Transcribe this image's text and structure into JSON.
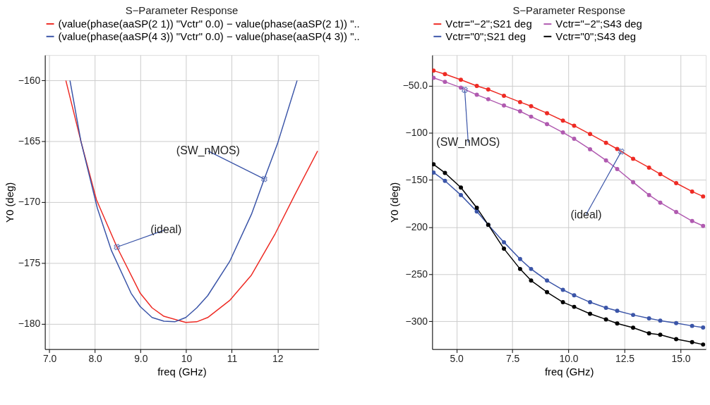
{
  "chart_data": [
    {
      "type": "line",
      "title": "S−Parameter Response",
      "xlabel": "freq (GHz)",
      "ylabel": "Y0 (deg)",
      "legend": "top",
      "grid": true,
      "marker": "none",
      "xlim": [
        6.9,
        12.9
      ],
      "ylim": [
        -182.1,
        -157.9
      ],
      "xticks": [
        {
          "value": 7,
          "label": "7.0"
        },
        {
          "value": 8,
          "label": "8.0"
        },
        {
          "value": 9,
          "label": "9.0"
        },
        {
          "value": 10,
          "label": "10"
        },
        {
          "value": 11,
          "label": "11"
        },
        {
          "value": 12,
          "label": "12"
        }
      ],
      "yticks": [
        {
          "value": -160,
          "label": "−160"
        },
        {
          "value": -165,
          "label": "−165"
        },
        {
          "value": -170,
          "label": "−170"
        },
        {
          "value": -175,
          "label": "−175"
        },
        {
          "value": -180,
          "label": "−180"
        }
      ],
      "series": [
        {
          "name": "(value(phase(aaSP(2 1)) \"Vctr\" 0.0) − value(phase(aaSP(2 1)) \"..",
          "color": "#ee2b24",
          "x": [
            7.36,
            7.69,
            8.03,
            8.48,
            8.99,
            9.25,
            9.51,
            9.99,
            10.23,
            10.47,
            10.95,
            11.43,
            11.95,
            12.38,
            12.88
          ],
          "values": [
            -160.0,
            -165.0,
            -169.8,
            -173.7,
            -177.5,
            -178.7,
            -179.4,
            -179.9,
            -179.85,
            -179.5,
            -178.1,
            -176.0,
            -172.6,
            -169.4,
            -165.8
          ]
        },
        {
          "name": "(value(phase(aaSP(4 3)) \"Vctr\" 0.0) − value(phase(aaSP(4 3)) \"..",
          "color": "#3b55a8",
          "x": [
            7.45,
            7.69,
            8.05,
            8.36,
            8.79,
            8.99,
            9.25,
            9.51,
            9.75,
            9.99,
            10.23,
            10.47,
            10.95,
            11.43,
            11.71,
            12.0,
            12.43
          ],
          "values": [
            -160.0,
            -165.0,
            -170.5,
            -174.0,
            -177.5,
            -178.6,
            -179.5,
            -179.8,
            -179.85,
            -179.5,
            -178.7,
            -177.7,
            -174.9,
            -171.0,
            -168.1,
            -165.2,
            -160.0
          ]
        }
      ],
      "annotations": [
        {
          "text": "(ideal)",
          "x": 8.48,
          "y": -173.7
        },
        {
          "text": "(SW_nMOS)",
          "x": 11.71,
          "y": -168.1
        }
      ]
    },
    {
      "type": "line",
      "title": "S−Parameter Response",
      "xlabel": "freq (GHz)",
      "ylabel": "Y0 (deg)",
      "legend": "top",
      "grid": true,
      "marker": "circle",
      "xlim": [
        3.92,
        16.12
      ],
      "ylim": [
        -329.6,
        -17.4
      ],
      "xticks": [
        {
          "value": 5,
          "label": "5.0"
        },
        {
          "value": 7.5,
          "label": "7.5"
        },
        {
          "value": 10,
          "label": "10.0"
        },
        {
          "value": 12.5,
          "label": "12.5"
        },
        {
          "value": 15,
          "label": "15.0"
        }
      ],
      "yticks": [
        {
          "value": -50,
          "label": "−50.0"
        },
        {
          "value": -100,
          "label": "−100"
        },
        {
          "value": -150,
          "label": "−150"
        },
        {
          "value": -200,
          "label": "−200"
        },
        {
          "value": -250,
          "label": "−250"
        },
        {
          "value": -300,
          "label": "−300"
        }
      ],
      "x": [
        3.98,
        4.49,
        5.2,
        5.91,
        6.42,
        7.12,
        7.84,
        8.33,
        9.04,
        9.75,
        10.25,
        10.96,
        11.67,
        12.17,
        12.88,
        13.59,
        14.09,
        14.8,
        15.51,
        16.0
      ],
      "series": [
        {
          "name": "Vctr=\"−2\";S21 deg",
          "color": "#ee2b24",
          "values": [
            -34,
            -37.7,
            -43.6,
            -50.2,
            -53.9,
            -60.6,
            -67.3,
            -71.7,
            -79.1,
            -87.0,
            -92.4,
            -101.3,
            -110.5,
            -117.1,
            -127.5,
            -136.9,
            -143.8,
            -153.4,
            -162.3,
            -167.5
          ]
        },
        {
          "name": "Vctr=\"−2\";S43 deg",
          "color": "#b05ab0",
          "values": [
            -41.6,
            -45.8,
            -52,
            -59.6,
            -64.3,
            -71,
            -77.1,
            -82.8,
            -90.7,
            -99.6,
            -106.3,
            -117.4,
            -129.2,
            -138.4,
            -152.4,
            -166,
            -174.1,
            -184,
            -193.6,
            -198.8
          ]
        },
        {
          "name": "Vctr=\"0\";S21 deg",
          "color": "#3b55a8",
          "values": [
            -142.1,
            -150.9,
            -166,
            -183.5,
            -197.6,
            -216.1,
            -233.9,
            -244.5,
            -256.8,
            -266.7,
            -272.4,
            -279.8,
            -285.7,
            -288.9,
            -293.3,
            -297,
            -299.3,
            -302,
            -304.9,
            -306.7
          ]
        },
        {
          "name": "Vctr=\"0\";S43 deg",
          "color": "#000000",
          "values": [
            -133.4,
            -142.5,
            -158.1,
            -179.6,
            -197.6,
            -223,
            -244.5,
            -256.8,
            -269.1,
            -279.8,
            -284.7,
            -292.1,
            -298,
            -302.4,
            -306.9,
            -312.8,
            -314.3,
            -319,
            -322.2,
            -324.7
          ]
        }
      ],
      "annotations": [
        {
          "text": "(SW_nMOS)",
          "x": 5.37,
          "y": -54.4
        },
        {
          "text": "(ideal)",
          "x": 12.35,
          "y": -119.8
        }
      ]
    }
  ]
}
